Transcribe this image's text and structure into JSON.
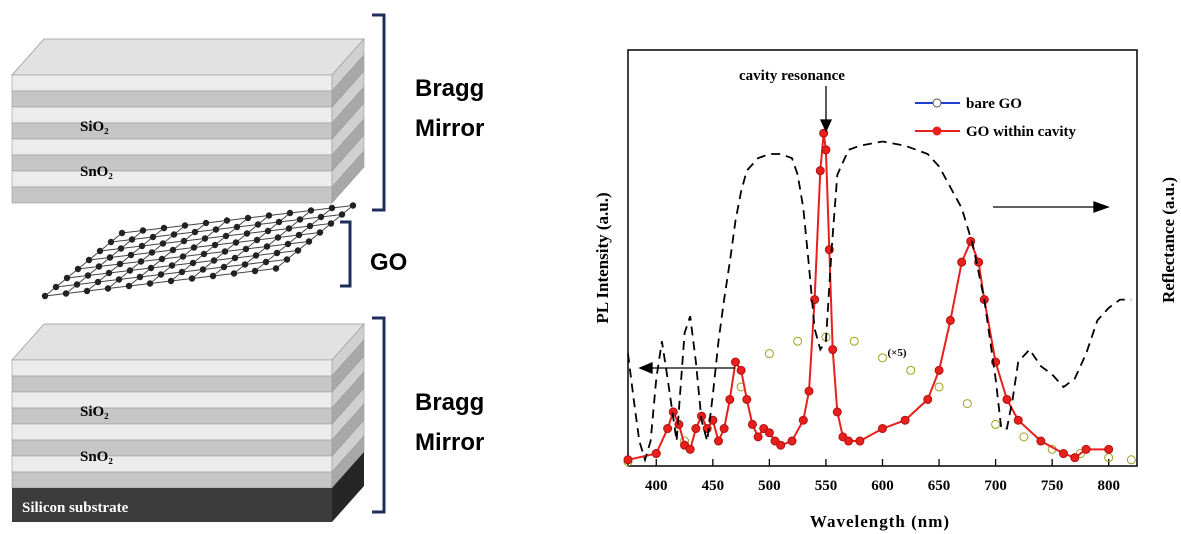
{
  "diagram": {
    "top_mirror": {
      "label": [
        "Bragg",
        "Mirror"
      ],
      "layers": [
        "SiO₂",
        "SnO₂"
      ]
    },
    "go_label": "GO",
    "bottom_mirror": {
      "label": [
        "Bragg",
        "Mirror"
      ],
      "layers": [
        "SiO₂",
        "SnO₂"
      ]
    },
    "substrate": "Silicon substrate"
  },
  "chart_data": {
    "type": "line",
    "x_label": "Wavelength (nm)",
    "y_label": "PL Intensity (a.u.)",
    "y2_label": "Reflectance (a.u.)",
    "annotations": [
      "cavity resonance",
      "(×5)"
    ],
    "xlim": [
      375,
      825
    ],
    "xticks": [
      400,
      450,
      500,
      550,
      600,
      650,
      700,
      750,
      800
    ],
    "ylim": [
      0,
      1
    ],
    "y2lim": [
      0,
      1
    ],
    "legend": "upper right",
    "series": [
      {
        "name": "bare GO",
        "color": "#a0a020",
        "legend_color": "#1f3fd0",
        "style": "open-marker",
        "x": [
          375,
          400,
          425,
          450,
          475,
          500,
          525,
          550,
          575,
          600,
          625,
          650,
          675,
          700,
          725,
          750,
          775,
          800,
          820
        ],
        "values": [
          0.01,
          0.03,
          0.06,
          0.11,
          0.19,
          0.27,
          0.3,
          0.31,
          0.3,
          0.26,
          0.23,
          0.19,
          0.15,
          0.1,
          0.07,
          0.04,
          0.03,
          0.02,
          0.015
        ]
      },
      {
        "name": "GO within cavity",
        "color": "#e8201c",
        "style": "line-marker",
        "x": [
          375,
          400,
          410,
          415,
          420,
          425,
          430,
          435,
          440,
          445,
          450,
          455,
          460,
          465,
          470,
          475,
          480,
          485,
          490,
          495,
          500,
          505,
          510,
          520,
          530,
          535,
          540,
          545,
          548,
          550,
          553,
          556,
          560,
          565,
          570,
          580,
          600,
          620,
          640,
          650,
          660,
          670,
          678,
          685,
          690,
          700,
          710,
          720,
          740,
          760,
          770,
          780,
          800
        ],
        "values": [
          0.015,
          0.03,
          0.09,
          0.13,
          0.1,
          0.05,
          0.04,
          0.09,
          0.12,
          0.09,
          0.11,
          0.06,
          0.09,
          0.16,
          0.25,
          0.23,
          0.16,
          0.1,
          0.07,
          0.09,
          0.08,
          0.06,
          0.05,
          0.06,
          0.11,
          0.18,
          0.4,
          0.71,
          0.8,
          0.76,
          0.52,
          0.28,
          0.13,
          0.07,
          0.06,
          0.06,
          0.09,
          0.11,
          0.16,
          0.23,
          0.35,
          0.49,
          0.54,
          0.49,
          0.4,
          0.25,
          0.16,
          0.11,
          0.06,
          0.03,
          0.02,
          0.04,
          0.04
        ]
      },
      {
        "color": "#000000",
        "style": "dashed",
        "axis": "y2",
        "x": [
          375,
          380,
          385,
          390,
          395,
          400,
          405,
          410,
          418,
          425,
          430,
          435,
          440,
          445,
          450,
          455,
          460,
          465,
          470,
          475,
          480,
          490,
          500,
          510,
          520,
          525,
          530,
          535,
          540,
          545,
          550,
          555,
          560,
          570,
          580,
          600,
          620,
          640,
          650,
          660,
          670,
          680,
          690,
          700,
          705,
          710,
          715,
          720,
          730,
          740,
          750,
          760,
          770,
          780,
          790,
          800,
          810,
          820
        ],
        "values": [
          0.27,
          0.16,
          0.06,
          0.015,
          0.06,
          0.21,
          0.3,
          0.21,
          0.06,
          0.32,
          0.36,
          0.25,
          0.11,
          0.06,
          0.17,
          0.3,
          0.4,
          0.49,
          0.59,
          0.66,
          0.71,
          0.74,
          0.75,
          0.75,
          0.74,
          0.7,
          0.62,
          0.48,
          0.33,
          0.28,
          0.3,
          0.52,
          0.7,
          0.76,
          0.77,
          0.78,
          0.77,
          0.75,
          0.72,
          0.67,
          0.62,
          0.53,
          0.4,
          0.21,
          0.09,
          0.09,
          0.16,
          0.25,
          0.28,
          0.24,
          0.22,
          0.19,
          0.21,
          0.27,
          0.35,
          0.38,
          0.4,
          0.4
        ]
      }
    ]
  }
}
